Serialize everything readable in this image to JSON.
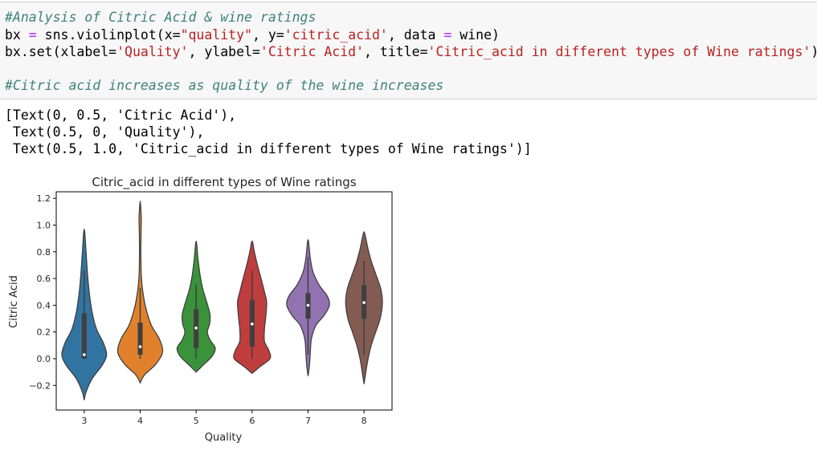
{
  "input_cell": {
    "line1": "#Analysis of Citric Acid & wine ratings",
    "line2": {
      "p1": "bx ",
      "p2": "=",
      "p3": " sns.violinplot(x=",
      "p4": "\"quality\"",
      "p5": ", y=",
      "p6": "'citric_acid'",
      "p7": ", data ",
      "p8": "=",
      "p9": " wine)"
    },
    "line3": {
      "p1": "bx.set(xlabel=",
      "p2": "'Quality'",
      "p3": ", ylabel=",
      "p4": "'Citric Acid'",
      "p5": ", title=",
      "p6": "'Citric_acid in different types of Wine ratings'",
      "p7": ")"
    },
    "line4": "#Citric acid increases as quality of the wine increases"
  },
  "output_text": {
    "line1": "[Text(0, 0.5, 'Citric Acid'),",
    "line2": " Text(0.5, 0, 'Quality'),",
    "line3": " Text(0.5, 1.0, 'Citric_acid in different types of Wine ratings')]"
  },
  "chart_data": {
    "type": "violin",
    "title": "Citric_acid in different types of Wine ratings",
    "xlabel": "Quality",
    "ylabel": "Citric Acid",
    "ylim": [
      -0.3,
      1.3
    ],
    "yticks": [
      -0.2,
      0.0,
      0.2,
      0.4,
      0.6,
      0.8,
      1.0,
      1.2
    ],
    "ytick_labels": [
      "−0.2",
      "0.0",
      "0.2",
      "0.4",
      "0.6",
      "0.8",
      "1.0",
      "1.2"
    ],
    "categories": [
      "3",
      "4",
      "5",
      "6",
      "7",
      "8"
    ],
    "colors": [
      "#3274a1",
      "#e1812c",
      "#3a923a",
      "#c03d3e",
      "#9372b2",
      "#845b53"
    ],
    "violins": [
      {
        "category": "3",
        "min": -0.31,
        "max": 0.97,
        "q1": 0.0,
        "median": 0.03,
        "q3": 0.34,
        "whisker_low": 0.0,
        "whisker_high": 0.66,
        "profile": [
          [
            -0.31,
            0.0
          ],
          [
            -0.25,
            0.08
          ],
          [
            -0.15,
            0.35
          ],
          [
            -0.05,
            0.8
          ],
          [
            0.03,
            1.0
          ],
          [
            0.12,
            0.85
          ],
          [
            0.22,
            0.55
          ],
          [
            0.35,
            0.35
          ],
          [
            0.5,
            0.22
          ],
          [
            0.65,
            0.14
          ],
          [
            0.8,
            0.08
          ],
          [
            0.97,
            0.0
          ]
        ]
      },
      {
        "category": "4",
        "min": -0.18,
        "max": 1.18,
        "q1": 0.03,
        "median": 0.09,
        "q3": 0.27,
        "whisker_low": 0.0,
        "whisker_high": 0.53,
        "profile": [
          [
            -0.18,
            0.0
          ],
          [
            -0.12,
            0.2
          ],
          [
            -0.04,
            0.7
          ],
          [
            0.05,
            1.0
          ],
          [
            0.15,
            0.85
          ],
          [
            0.25,
            0.5
          ],
          [
            0.38,
            0.25
          ],
          [
            0.5,
            0.12
          ],
          [
            0.62,
            0.05
          ],
          [
            0.8,
            0.03
          ],
          [
            0.95,
            0.04
          ],
          [
            1.05,
            0.05
          ],
          [
            1.12,
            0.03
          ],
          [
            1.18,
            0.0
          ]
        ]
      },
      {
        "category": "5",
        "min": -0.1,
        "max": 0.88,
        "q1": 0.08,
        "median": 0.23,
        "q3": 0.37,
        "whisker_low": 0.0,
        "whisker_high": 0.56,
        "profile": [
          [
            -0.1,
            0.0
          ],
          [
            -0.05,
            0.3
          ],
          [
            0.02,
            0.72
          ],
          [
            0.08,
            0.85
          ],
          [
            0.14,
            0.62
          ],
          [
            0.2,
            0.5
          ],
          [
            0.26,
            0.6
          ],
          [
            0.33,
            0.62
          ],
          [
            0.42,
            0.48
          ],
          [
            0.52,
            0.3
          ],
          [
            0.62,
            0.18
          ],
          [
            0.75,
            0.08
          ],
          [
            0.88,
            0.0
          ]
        ]
      },
      {
        "category": "6",
        "min": -0.11,
        "max": 0.88,
        "q1": 0.09,
        "median": 0.26,
        "q3": 0.44,
        "whisker_low": 0.0,
        "whisker_high": 0.66,
        "profile": [
          [
            -0.11,
            0.0
          ],
          [
            -0.06,
            0.35
          ],
          [
            0.0,
            0.8
          ],
          [
            0.06,
            0.75
          ],
          [
            0.13,
            0.55
          ],
          [
            0.22,
            0.55
          ],
          [
            0.3,
            0.6
          ],
          [
            0.42,
            0.65
          ],
          [
            0.5,
            0.55
          ],
          [
            0.6,
            0.4
          ],
          [
            0.7,
            0.24
          ],
          [
            0.8,
            0.1
          ],
          [
            0.88,
            0.0
          ]
        ]
      },
      {
        "category": "7",
        "min": -0.13,
        "max": 0.89,
        "q1": 0.3,
        "median": 0.4,
        "q3": 0.49,
        "whisker_low": 0.03,
        "whisker_high": 0.76,
        "profile": [
          [
            -0.13,
            0.0
          ],
          [
            -0.05,
            0.06
          ],
          [
            0.05,
            0.1
          ],
          [
            0.15,
            0.15
          ],
          [
            0.25,
            0.35
          ],
          [
            0.32,
            0.7
          ],
          [
            0.4,
            0.95
          ],
          [
            0.47,
            0.85
          ],
          [
            0.55,
            0.5
          ],
          [
            0.65,
            0.22
          ],
          [
            0.75,
            0.1
          ],
          [
            0.83,
            0.05
          ],
          [
            0.89,
            0.0
          ]
        ]
      },
      {
        "category": "8",
        "min": -0.19,
        "max": 0.95,
        "q1": 0.3,
        "median": 0.42,
        "q3": 0.55,
        "whisker_low": 0.03,
        "whisker_high": 0.73,
        "profile": [
          [
            -0.19,
            0.0
          ],
          [
            -0.1,
            0.08
          ],
          [
            0.0,
            0.18
          ],
          [
            0.1,
            0.32
          ],
          [
            0.2,
            0.52
          ],
          [
            0.3,
            0.72
          ],
          [
            0.42,
            0.82
          ],
          [
            0.52,
            0.75
          ],
          [
            0.62,
            0.55
          ],
          [
            0.72,
            0.34
          ],
          [
            0.82,
            0.18
          ],
          [
            0.9,
            0.08
          ],
          [
            0.95,
            0.0
          ]
        ]
      }
    ]
  }
}
